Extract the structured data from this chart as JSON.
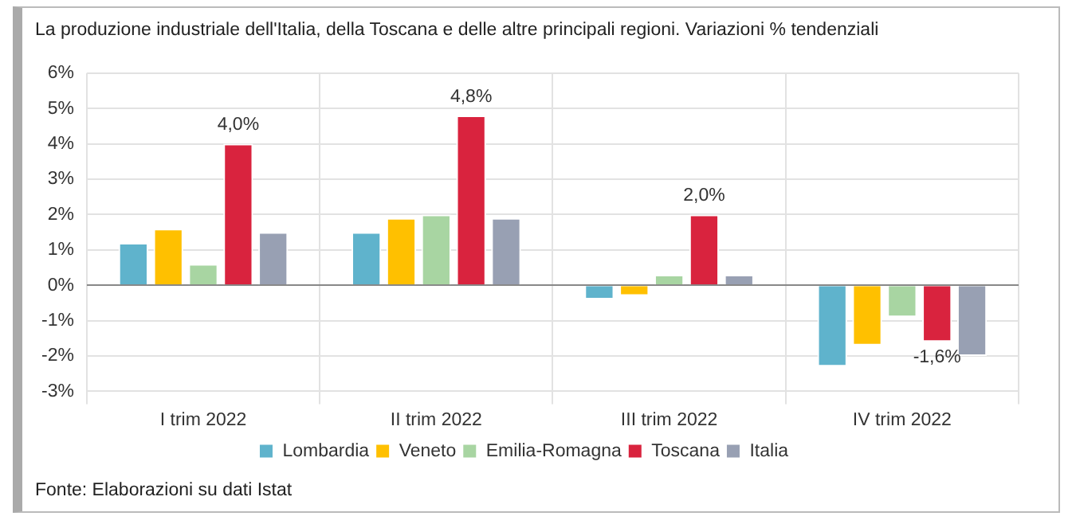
{
  "chart_data": {
    "type": "bar",
    "title": "La produzione industriale dell'Italia, della Toscana e delle altre principali regioni. Variazioni % tendenziali",
    "categories": [
      "I trim 2022",
      "II trim 2022",
      "III trim 2022",
      "IV trim 2022"
    ],
    "series": [
      {
        "name": "Lombardia",
        "color": "#5fb3cc",
        "values": [
          1.2,
          1.5,
          -0.4,
          -2.3
        ]
      },
      {
        "name": "Veneto",
        "color": "#ffc000",
        "values": [
          1.6,
          1.9,
          -0.3,
          -1.7
        ]
      },
      {
        "name": "Emilia-Romagna",
        "color": "#a8d5a2",
        "values": [
          0.6,
          2.0,
          0.3,
          -0.9
        ]
      },
      {
        "name": "Toscana",
        "color": "#d9233e",
        "values": [
          4.0,
          4.8,
          2.0,
          -1.6
        ],
        "value_labels": [
          "4,0%",
          "4,8%",
          "2,0%",
          "-1,6%"
        ]
      },
      {
        "name": "Italia",
        "color": "#98a0b3",
        "values": [
          1.5,
          1.9,
          0.3,
          -2.0
        ]
      }
    ],
    "ylim": [
      -3,
      6
    ],
    "yticks": [
      {
        "value": -3,
        "label": "-3%"
      },
      {
        "value": -2,
        "label": "-2%"
      },
      {
        "value": -1,
        "label": "-1%"
      },
      {
        "value": 0,
        "label": "0%"
      },
      {
        "value": 1,
        "label": "1%"
      },
      {
        "value": 2,
        "label": "2%"
      },
      {
        "value": 3,
        "label": "3%"
      },
      {
        "value": 4,
        "label": "4%"
      },
      {
        "value": 5,
        "label": "5%"
      },
      {
        "value": 6,
        "label": "6%"
      }
    ],
    "grid": true,
    "legend": "bottom",
    "annotations": [
      "Fonte: Elaborazioni su dati Istat"
    ]
  }
}
